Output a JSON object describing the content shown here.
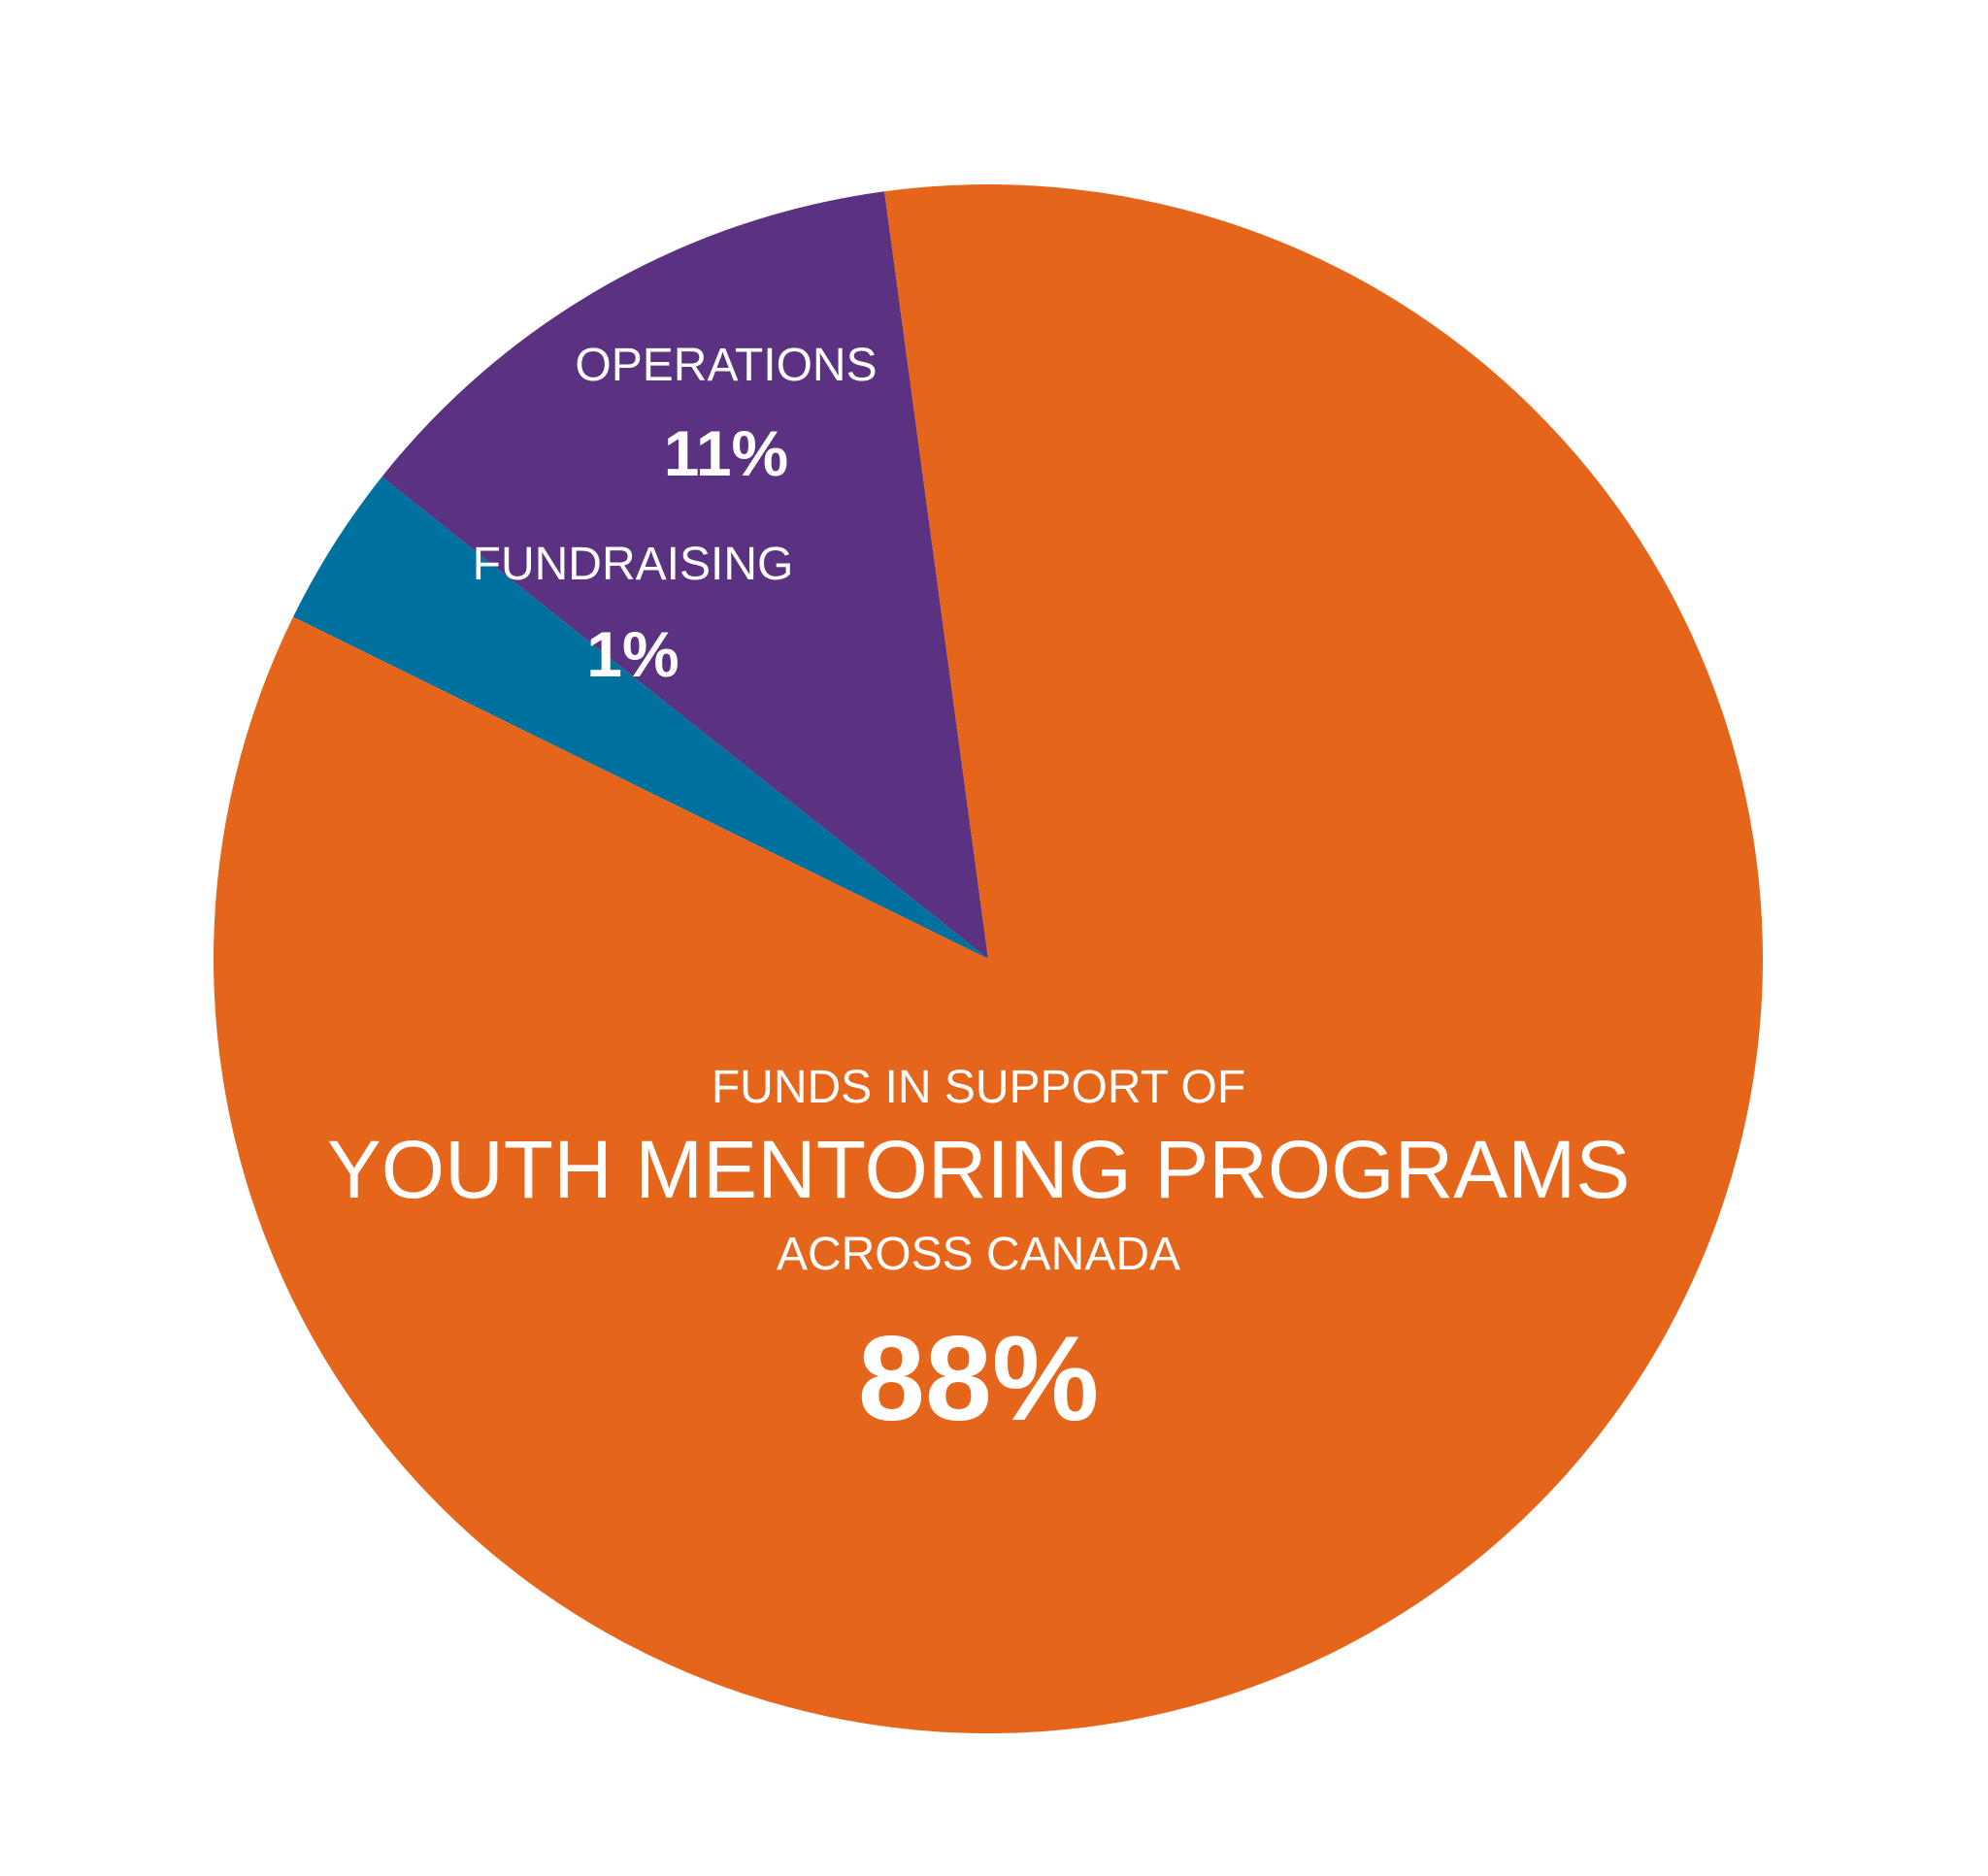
{
  "chart_data": {
    "type": "pie",
    "title": "",
    "slices": [
      {
        "label": "OPERATIONS",
        "value": 11,
        "value_label": "11%",
        "color": "#5B3181"
      },
      {
        "label": "FUNDRAISING",
        "value": 1,
        "value_label": "1%",
        "color": "#00709F"
      },
      {
        "label_lines": [
          "FUNDS IN SUPPORT OF",
          "YOUTH MENTORING PROGRAMS",
          "ACROSS CANADA"
        ],
        "value": 88,
        "value_label": "88%",
        "color": "#E5651B"
      }
    ],
    "legend": "none"
  }
}
